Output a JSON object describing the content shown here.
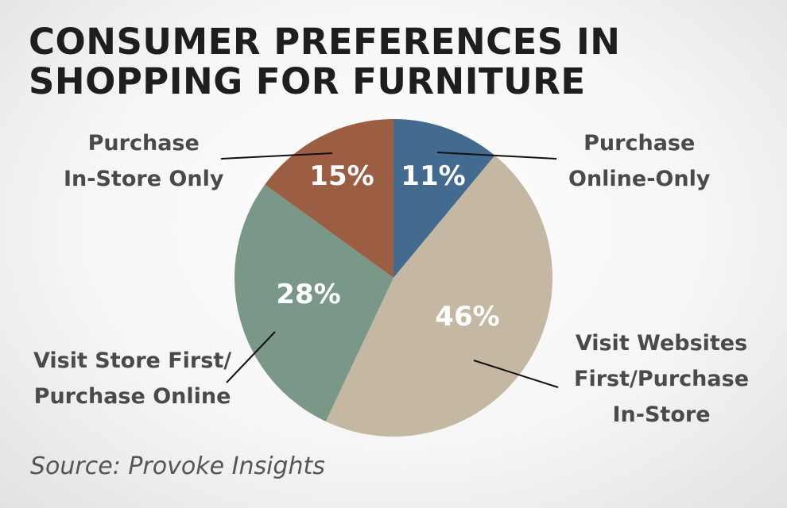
{
  "chart_data": {
    "type": "pie",
    "title": "CONSUMER PREFERENCES IN SHOPPING FOR FURNITURE",
    "title_lines": [
      "CONSUMER PREFERENCES IN",
      "SHOPPING FOR FURNITURE"
    ],
    "slices": [
      {
        "label": "Purchase Online-Only",
        "label_lines": [
          "Purchase",
          "Online-Only"
        ],
        "value": 11,
        "display": "11%",
        "color": "#436a8f"
      },
      {
        "label": "Visit Websites First/Purchase In-Store",
        "label_lines": [
          "Visit Websites",
          "First/Purchase",
          "In-Store"
        ],
        "value": 46,
        "display": "46%",
        "color": "#c4b8a2"
      },
      {
        "label": "Visit Store First/ Purchase Online",
        "label_lines": [
          "Visit Store First/",
          "Purchase Online"
        ],
        "value": 28,
        "display": "28%",
        "color": "#799887"
      },
      {
        "label": "Purchase In-Store Only",
        "label_lines": [
          "Purchase",
          "In-Store Only"
        ],
        "value": 15,
        "display": "15%",
        "color": "#9b5e42"
      }
    ],
    "start_angle": "12 o'clock",
    "direction": "clockwise",
    "source": "Source: Provoke Insights"
  }
}
